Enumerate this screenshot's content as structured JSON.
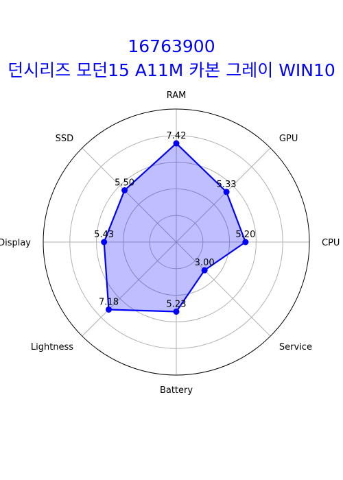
{
  "chart_data": {
    "type": "radar",
    "title": "16763900",
    "subtitle": "던시리즈 모던15 A11M 카본 그레이 WIN10",
    "categories": [
      "CPU",
      "GPU",
      "RAM",
      "SSD",
      "Display",
      "Lightness",
      "Battery",
      "Service"
    ],
    "values": [
      5.2,
      5.33,
      7.42,
      5.5,
      5.43,
      7.18,
      5.23,
      3.0
    ],
    "value_labels": [
      "5.20",
      "5.33",
      "7.42",
      "5.50",
      "5.43",
      "7.18",
      "5.23",
      "3.00"
    ],
    "rlim": [
      0,
      10
    ],
    "grid": true,
    "colors": {
      "line": "#0000ff",
      "fill": "#0000ff",
      "fill_opacity": 0.25,
      "grid": "#b0b0b0",
      "title": "#0000ff"
    }
  }
}
